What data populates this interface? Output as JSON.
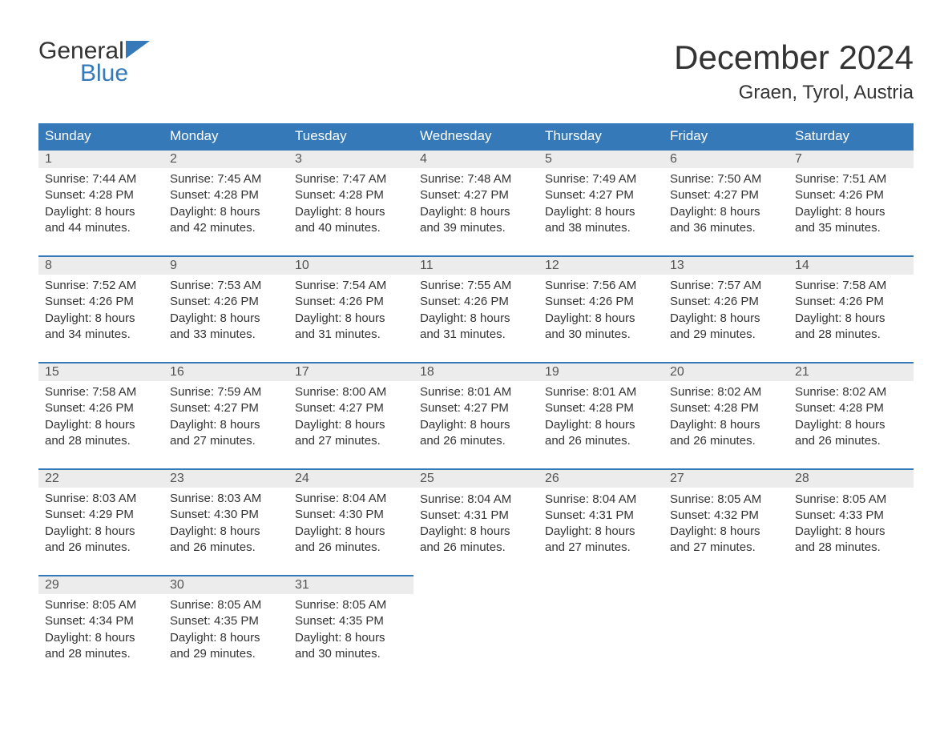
{
  "logo": {
    "word1": "General",
    "word2": "Blue",
    "icon_color": "#3579b8"
  },
  "header": {
    "title": "December 2024",
    "location": "Graen, Tyrol, Austria"
  },
  "colors": {
    "header_bg": "#3579b8",
    "header_text": "#ffffff",
    "daynum_bg": "#ececec",
    "daynum_border": "#3579b8",
    "body_text": "#333333",
    "logo_blue": "#3579b8"
  },
  "day_headers": [
    "Sunday",
    "Monday",
    "Tuesday",
    "Wednesday",
    "Thursday",
    "Friday",
    "Saturday"
  ],
  "weeks": [
    [
      {
        "n": "1",
        "sunrise": "Sunrise: 7:44 AM",
        "sunset": "Sunset: 4:28 PM",
        "d1": "Daylight: 8 hours",
        "d2": "and 44 minutes."
      },
      {
        "n": "2",
        "sunrise": "Sunrise: 7:45 AM",
        "sunset": "Sunset: 4:28 PM",
        "d1": "Daylight: 8 hours",
        "d2": "and 42 minutes."
      },
      {
        "n": "3",
        "sunrise": "Sunrise: 7:47 AM",
        "sunset": "Sunset: 4:28 PM",
        "d1": "Daylight: 8 hours",
        "d2": "and 40 minutes."
      },
      {
        "n": "4",
        "sunrise": "Sunrise: 7:48 AM",
        "sunset": "Sunset: 4:27 PM",
        "d1": "Daylight: 8 hours",
        "d2": "and 39 minutes."
      },
      {
        "n": "5",
        "sunrise": "Sunrise: 7:49 AM",
        "sunset": "Sunset: 4:27 PM",
        "d1": "Daylight: 8 hours",
        "d2": "and 38 minutes."
      },
      {
        "n": "6",
        "sunrise": "Sunrise: 7:50 AM",
        "sunset": "Sunset: 4:27 PM",
        "d1": "Daylight: 8 hours",
        "d2": "and 36 minutes."
      },
      {
        "n": "7",
        "sunrise": "Sunrise: 7:51 AM",
        "sunset": "Sunset: 4:26 PM",
        "d1": "Daylight: 8 hours",
        "d2": "and 35 minutes."
      }
    ],
    [
      {
        "n": "8",
        "sunrise": "Sunrise: 7:52 AM",
        "sunset": "Sunset: 4:26 PM",
        "d1": "Daylight: 8 hours",
        "d2": "and 34 minutes."
      },
      {
        "n": "9",
        "sunrise": "Sunrise: 7:53 AM",
        "sunset": "Sunset: 4:26 PM",
        "d1": "Daylight: 8 hours",
        "d2": "and 33 minutes."
      },
      {
        "n": "10",
        "sunrise": "Sunrise: 7:54 AM",
        "sunset": "Sunset: 4:26 PM",
        "d1": "Daylight: 8 hours",
        "d2": "and 31 minutes."
      },
      {
        "n": "11",
        "sunrise": "Sunrise: 7:55 AM",
        "sunset": "Sunset: 4:26 PM",
        "d1": "Daylight: 8 hours",
        "d2": "and 31 minutes."
      },
      {
        "n": "12",
        "sunrise": "Sunrise: 7:56 AM",
        "sunset": "Sunset: 4:26 PM",
        "d1": "Daylight: 8 hours",
        "d2": "and 30 minutes."
      },
      {
        "n": "13",
        "sunrise": "Sunrise: 7:57 AM",
        "sunset": "Sunset: 4:26 PM",
        "d1": "Daylight: 8 hours",
        "d2": "and 29 minutes."
      },
      {
        "n": "14",
        "sunrise": "Sunrise: 7:58 AM",
        "sunset": "Sunset: 4:26 PM",
        "d1": "Daylight: 8 hours",
        "d2": "and 28 minutes."
      }
    ],
    [
      {
        "n": "15",
        "sunrise": "Sunrise: 7:58 AM",
        "sunset": "Sunset: 4:26 PM",
        "d1": "Daylight: 8 hours",
        "d2": "and 28 minutes."
      },
      {
        "n": "16",
        "sunrise": "Sunrise: 7:59 AM",
        "sunset": "Sunset: 4:27 PM",
        "d1": "Daylight: 8 hours",
        "d2": "and 27 minutes."
      },
      {
        "n": "17",
        "sunrise": "Sunrise: 8:00 AM",
        "sunset": "Sunset: 4:27 PM",
        "d1": "Daylight: 8 hours",
        "d2": "and 27 minutes."
      },
      {
        "n": "18",
        "sunrise": "Sunrise: 8:01 AM",
        "sunset": "Sunset: 4:27 PM",
        "d1": "Daylight: 8 hours",
        "d2": "and 26 minutes."
      },
      {
        "n": "19",
        "sunrise": "Sunrise: 8:01 AM",
        "sunset": "Sunset: 4:28 PM",
        "d1": "Daylight: 8 hours",
        "d2": "and 26 minutes."
      },
      {
        "n": "20",
        "sunrise": "Sunrise: 8:02 AM",
        "sunset": "Sunset: 4:28 PM",
        "d1": "Daylight: 8 hours",
        "d2": "and 26 minutes."
      },
      {
        "n": "21",
        "sunrise": "Sunrise: 8:02 AM",
        "sunset": "Sunset: 4:28 PM",
        "d1": "Daylight: 8 hours",
        "d2": "and 26 minutes."
      }
    ],
    [
      {
        "n": "22",
        "sunrise": "Sunrise: 8:03 AM",
        "sunset": "Sunset: 4:29 PM",
        "d1": "Daylight: 8 hours",
        "d2": "and 26 minutes."
      },
      {
        "n": "23",
        "sunrise": "Sunrise: 8:03 AM",
        "sunset": "Sunset: 4:30 PM",
        "d1": "Daylight: 8 hours",
        "d2": "and 26 minutes."
      },
      {
        "n": "24",
        "sunrise": "Sunrise: 8:04 AM",
        "sunset": "Sunset: 4:30 PM",
        "d1": "Daylight: 8 hours",
        "d2": "and 26 minutes."
      },
      {
        "n": "25",
        "sunrise": "Sunrise: 8:04 AM",
        "sunset": "Sunset: 4:31 PM",
        "d1": "Daylight: 8 hours",
        "d2": "and 26 minutes."
      },
      {
        "n": "26",
        "sunrise": "Sunrise: 8:04 AM",
        "sunset": "Sunset: 4:31 PM",
        "d1": "Daylight: 8 hours",
        "d2": "and 27 minutes."
      },
      {
        "n": "27",
        "sunrise": "Sunrise: 8:05 AM",
        "sunset": "Sunset: 4:32 PM",
        "d1": "Daylight: 8 hours",
        "d2": "and 27 minutes."
      },
      {
        "n": "28",
        "sunrise": "Sunrise: 8:05 AM",
        "sunset": "Sunset: 4:33 PM",
        "d1": "Daylight: 8 hours",
        "d2": "and 28 minutes."
      }
    ],
    [
      {
        "n": "29",
        "sunrise": "Sunrise: 8:05 AM",
        "sunset": "Sunset: 4:34 PM",
        "d1": "Daylight: 8 hours",
        "d2": "and 28 minutes."
      },
      {
        "n": "30",
        "sunrise": "Sunrise: 8:05 AM",
        "sunset": "Sunset: 4:35 PM",
        "d1": "Daylight: 8 hours",
        "d2": "and 29 minutes."
      },
      {
        "n": "31",
        "sunrise": "Sunrise: 8:05 AM",
        "sunset": "Sunset: 4:35 PM",
        "d1": "Daylight: 8 hours",
        "d2": "and 30 minutes."
      },
      null,
      null,
      null,
      null
    ]
  ]
}
